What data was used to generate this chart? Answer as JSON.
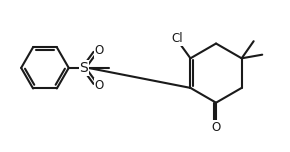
{
  "background": "#ffffff",
  "line_color": "#1a1a1a",
  "line_width": 1.5,
  "text_color": "#1a1a1a",
  "font_size": 8.5,
  "figsize": [
    2.9,
    1.52
  ],
  "dpi": 100,
  "xlim": [
    0,
    10
  ],
  "ylim": [
    0,
    5.24
  ]
}
